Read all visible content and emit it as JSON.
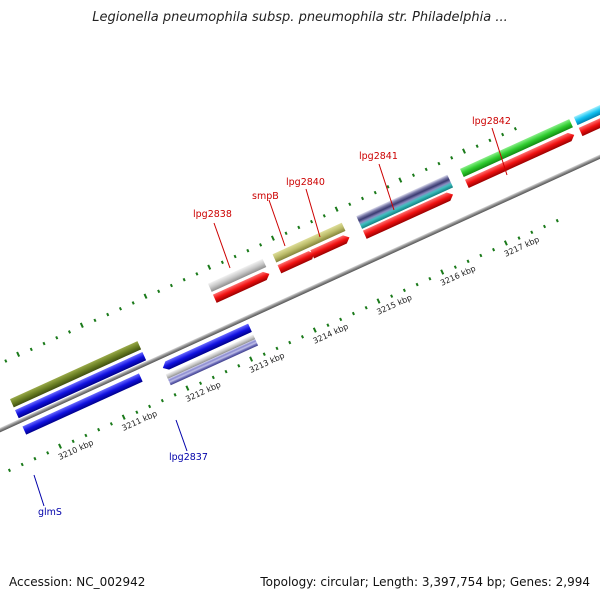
{
  "title": "Legionella pneumophila subsp. pneumophila str. Philadelphia ...",
  "accession": "Accession: NC_002942",
  "summary": "Topology: circular; Length: 3,397,754 bp; Genes: 2,994",
  "colors": {
    "label_red": "#cc0000",
    "label_blue": "#0000aa",
    "backbone": "#8a8a8a",
    "tick": "#1a7a1a"
  },
  "kbp_labels": [
    "3210 kbp",
    "3211 kbp",
    "3212 kbp",
    "3213 kbp",
    "3214 kbp",
    "3215 kbp",
    "3216 kbp",
    "3217 kbp"
  ],
  "gene_labels": [
    {
      "text": "glmS",
      "color": "blue"
    },
    {
      "text": "lpg2837",
      "color": "blue"
    },
    {
      "text": "lpg2838",
      "color": "red"
    },
    {
      "text": "smpB",
      "color": "red"
    },
    {
      "text": "lpg2840",
      "color": "red"
    },
    {
      "text": "lpg2841",
      "color": "red"
    },
    {
      "text": "lpg2842",
      "color": "red"
    }
  ]
}
